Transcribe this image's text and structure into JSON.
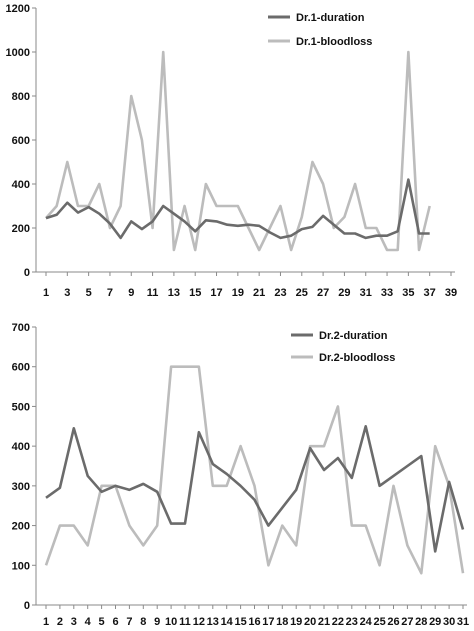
{
  "chart_data": [
    {
      "type": "line",
      "x": [
        1,
        2,
        3,
        4,
        5,
        6,
        7,
        8,
        9,
        10,
        11,
        12,
        13,
        14,
        15,
        16,
        17,
        18,
        19,
        20,
        21,
        22,
        23,
        24,
        25,
        26,
        27,
        28,
        29,
        30,
        31,
        32,
        33,
        34,
        35,
        36,
        37
      ],
      "x_tick_labels": [
        "1",
        "3",
        "5",
        "7",
        "9",
        "11",
        "13",
        "15",
        "17",
        "19",
        "21",
        "23",
        "25",
        "27",
        "29",
        "31",
        "33",
        "35",
        "37",
        "39"
      ],
      "x_range": [
        1,
        39
      ],
      "y_ticks": [
        0,
        200,
        400,
        600,
        800,
        1000,
        1200
      ],
      "ylim": [
        0,
        1200
      ],
      "grid": false,
      "legend_position": "top-right",
      "series": [
        {
          "name": "Dr.1-duration",
          "color": "#6b6b6b",
          "values": [
            245,
            260,
            315,
            270,
            295,
            265,
            220,
            155,
            230,
            195,
            230,
            300,
            265,
            230,
            185,
            235,
            230,
            215,
            210,
            215,
            210,
            180,
            155,
            165,
            195,
            205,
            255,
            215,
            175,
            175,
            155,
            165,
            165,
            185,
            420,
            175,
            175
          ]
        },
        {
          "name": "Dr.1-bloodloss",
          "color": "#bcbcbc",
          "values": [
            245,
            300,
            500,
            300,
            300,
            400,
            200,
            300,
            800,
            600,
            200,
            1000,
            100,
            300,
            100,
            400,
            300,
            300,
            300,
            200,
            100,
            200,
            300,
            100,
            250,
            500,
            400,
            200,
            250,
            400,
            200,
            200,
            100,
            100,
            1000,
            100,
            300
          ]
        }
      ]
    },
    {
      "type": "line",
      "x": [
        1,
        2,
        3,
        4,
        5,
        6,
        7,
        8,
        9,
        10,
        11,
        12,
        13,
        14,
        15,
        16,
        17,
        18,
        19,
        20,
        21,
        22,
        23,
        24,
        25,
        26,
        27,
        28,
        29,
        30,
        31
      ],
      "x_tick_labels": [
        "1",
        "2",
        "3",
        "4",
        "5",
        "6",
        "7",
        "8",
        "9",
        "10",
        "11",
        "12",
        "13",
        "14",
        "15",
        "16",
        "17",
        "18",
        "19",
        "20",
        "21",
        "22",
        "23",
        "24",
        "25",
        "26",
        "27",
        "28",
        "29",
        "30",
        "31"
      ],
      "y_ticks": [
        0,
        100,
        200,
        300,
        400,
        500,
        600,
        700
      ],
      "ylim": [
        0,
        700
      ],
      "grid": false,
      "legend_position": "top-right",
      "series": [
        {
          "name": "Dr.2-duration",
          "color": "#6b6b6b",
          "values": [
            270,
            295,
            445,
            325,
            285,
            300,
            290,
            305,
            285,
            205,
            205,
            435,
            355,
            330,
            300,
            265,
            200,
            245,
            290,
            395,
            340,
            370,
            320,
            450,
            300,
            325,
            350,
            375,
            135,
            310,
            190
          ]
        },
        {
          "name": "Dr.2-bloodloss",
          "color": "#bcbcbc",
          "values": [
            100,
            200,
            200,
            150,
            300,
            300,
            200,
            150,
            200,
            600,
            600,
            600,
            300,
            300,
            400,
            300,
            100,
            200,
            150,
            400,
            400,
            500,
            200,
            200,
            100,
            300,
            150,
            80,
            400,
            300,
            80
          ]
        }
      ]
    }
  ]
}
